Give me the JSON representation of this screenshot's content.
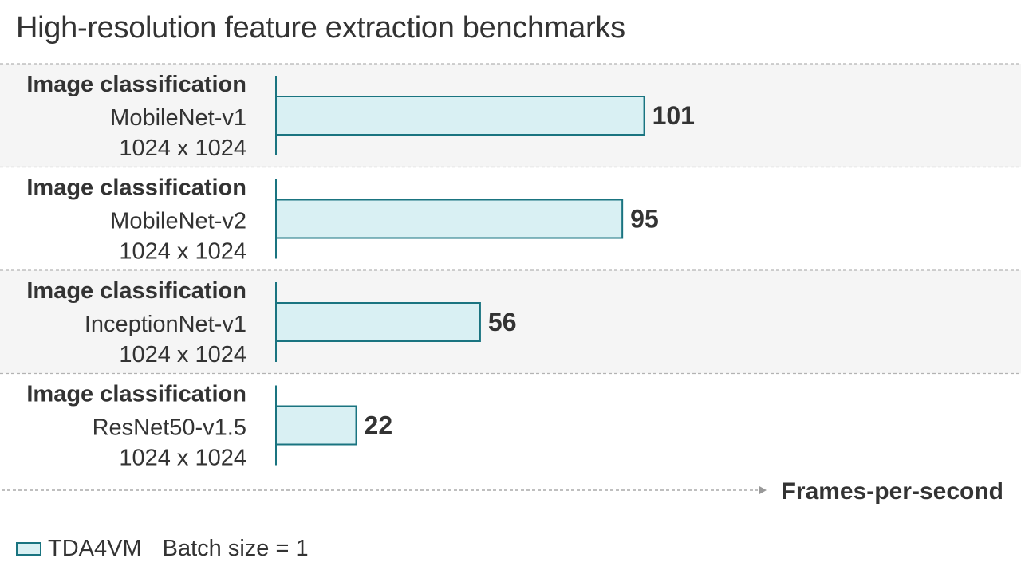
{
  "title": "High-resolution feature extraction benchmarks",
  "legend": {
    "series_label": "TDA4VM",
    "note": "Batch size = 1"
  },
  "colors": {
    "bar_fill": "#d9f0f3",
    "bar_stroke": "#1a7480",
    "band_shade": "#f5f5f5",
    "text": "#333333",
    "divider": "#b3b3b3"
  },
  "chart_data": {
    "type": "bar",
    "orientation": "horizontal",
    "title": "High-resolution feature extraction benchmarks",
    "xlabel": "Frames-per-second",
    "categories": [
      {
        "task": "Image classification",
        "model": "MobileNet-v1",
        "resolution": "1024 x 1024"
      },
      {
        "task": "Image classification",
        "model": "MobileNet-v2",
        "resolution": "1024 x 1024"
      },
      {
        "task": "Image classification",
        "model": "InceptionNet-v1",
        "resolution": "1024 x 1024"
      },
      {
        "task": "Image classification",
        "model": "ResNet50-v1.5",
        "resolution": "1024 x 1024"
      }
    ],
    "series": [
      {
        "name": "TDA4VM",
        "values": [
          101,
          95,
          56,
          22
        ]
      }
    ],
    "data_labels": [
      "101",
      "95",
      "56",
      "22"
    ],
    "grid": false,
    "legend_position": "bottom-left"
  }
}
